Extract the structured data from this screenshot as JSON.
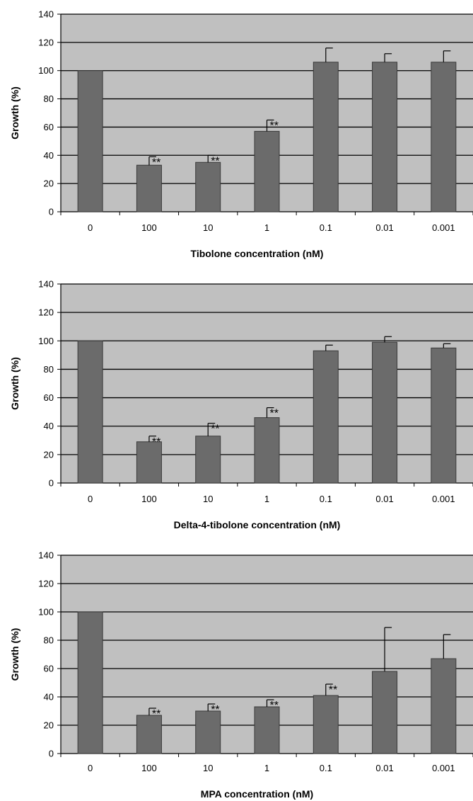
{
  "chart_data": [
    {
      "type": "bar",
      "title": "",
      "xlabel": "Tibolone concentration (nM)",
      "ylabel": "Growth (%)",
      "categories": [
        "0",
        "100",
        "10",
        "1",
        "0.1",
        "0.01",
        "0.001"
      ],
      "values": [
        100,
        33,
        35,
        57,
        106,
        106,
        106
      ],
      "errors": [
        0,
        6,
        5,
        8,
        10,
        6,
        8
      ],
      "significance": [
        "",
        "**",
        "**",
        "**",
        "",
        "",
        ""
      ],
      "ylim": [
        0,
        140
      ],
      "yticks": [
        0,
        20,
        40,
        60,
        80,
        100,
        120,
        140
      ],
      "grid": true,
      "colors": {
        "plot_bg": "#c0c0c0",
        "bar": "#6b6b6b",
        "grid": "#000000"
      }
    },
    {
      "type": "bar",
      "title": "",
      "xlabel": "Delta-4-tibolone concentration (nM)",
      "ylabel": "Growth (%)",
      "categories": [
        "0",
        "100",
        "10",
        "1",
        "0.1",
        "0.01",
        "0.001"
      ],
      "values": [
        100,
        29,
        33,
        46,
        93,
        99,
        95
      ],
      "errors": [
        0,
        4,
        9,
        7,
        4,
        4,
        3
      ],
      "significance": [
        "",
        "**",
        "**",
        "**",
        "",
        "",
        ""
      ],
      "ylim": [
        0,
        140
      ],
      "yticks": [
        0,
        20,
        40,
        60,
        80,
        100,
        120,
        140
      ],
      "grid": true,
      "colors": {
        "plot_bg": "#c0c0c0",
        "bar": "#6b6b6b",
        "grid": "#000000"
      }
    },
    {
      "type": "bar",
      "title": "",
      "xlabel": "MPA concentration (nM)",
      "ylabel": "Growth (%)",
      "categories": [
        "0",
        "100",
        "10",
        "1",
        "0.1",
        "0.01",
        "0.001"
      ],
      "values": [
        100,
        27,
        30,
        33,
        41,
        58,
        67
      ],
      "errors": [
        0,
        5,
        5,
        5,
        8,
        31,
        17
      ],
      "significance": [
        "",
        "**",
        "**",
        "**",
        "**",
        "",
        ""
      ],
      "ylim": [
        0,
        140
      ],
      "yticks": [
        0,
        20,
        40,
        60,
        80,
        100,
        120,
        140
      ],
      "grid": true,
      "colors": {
        "plot_bg": "#c0c0c0",
        "bar": "#6b6b6b",
        "grid": "#000000"
      }
    }
  ]
}
